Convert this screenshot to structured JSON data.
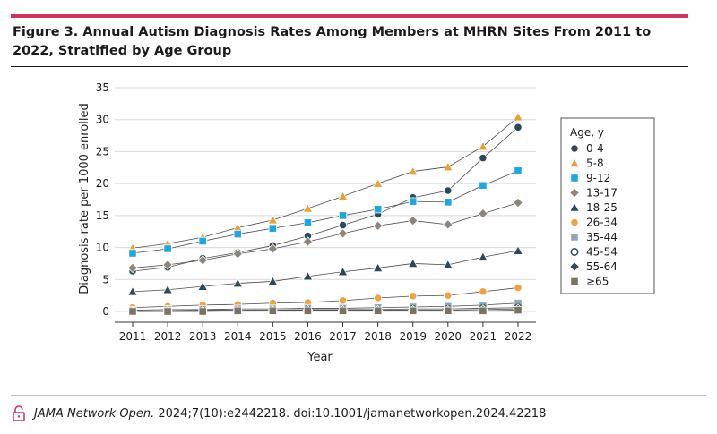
{
  "figure": {
    "title": "Figure 3. Annual Autism Diagnosis Rates Among Members at MHRN Sites From 2011 to 2022, Stratified by Age Group",
    "citation_journal": "JAMA Network Open.",
    "citation_rest": " 2024;7(10):e2442218. doi:10.1001/jamanetworkopen.2024.42218",
    "icon": "open-lock-icon"
  },
  "colors": {
    "accent_rule": "#c8365f",
    "navy": "#2f4858",
    "orange_tri": "#e8a13a",
    "blue": "#1ea7df",
    "taupe": "#8c8578",
    "orange_circle": "#efa347",
    "steel": "#8fa7b8",
    "brown": "#7b7266"
  },
  "chart_data": {
    "type": "line",
    "title": "",
    "xlabel": "Year",
    "ylabel": "Diagnosis rate per 1000 enrolled",
    "x": [
      "2011",
      "2012",
      "2013",
      "2014",
      "2015",
      "2016",
      "2017",
      "2018",
      "2019",
      "2020",
      "2021",
      "2022"
    ],
    "ylim": [
      0,
      35
    ],
    "yticks": [
      "0",
      "5",
      "10",
      "15",
      "20",
      "25",
      "30",
      "35"
    ],
    "grid": true,
    "legend_title": "Age, y",
    "legend_position": "right",
    "series": [
      {
        "name": "0-4",
        "marker": "circle",
        "color": "#2f4858",
        "values": [
          6.3,
          6.9,
          8.3,
          9.2,
          10.3,
          11.8,
          13.5,
          15.2,
          17.8,
          18.9,
          24.0,
          28.8
        ]
      },
      {
        "name": "5-8",
        "marker": "triangle",
        "color": "#e8a13a",
        "values": [
          9.9,
          10.6,
          11.6,
          13.1,
          14.3,
          16.1,
          18.0,
          20.0,
          21.9,
          22.6,
          25.8,
          30.4
        ]
      },
      {
        "name": "9-12",
        "marker": "square",
        "color": "#1ea7df",
        "values": [
          9.1,
          9.8,
          11.0,
          12.1,
          13.0,
          13.9,
          15.0,
          16.0,
          17.2,
          17.1,
          19.7,
          22.0
        ]
      },
      {
        "name": "13-17",
        "marker": "diamond",
        "color": "#8c8578",
        "values": [
          6.8,
          7.3,
          8.0,
          9.0,
          9.8,
          10.9,
          12.2,
          13.4,
          14.2,
          13.6,
          15.3,
          17.0
        ]
      },
      {
        "name": "18-25",
        "marker": "triangle",
        "color": "#2f4858",
        "values": [
          3.1,
          3.4,
          3.9,
          4.4,
          4.7,
          5.5,
          6.2,
          6.8,
          7.5,
          7.3,
          8.5,
          9.5
        ]
      },
      {
        "name": "26-34",
        "marker": "circle",
        "color": "#efa347",
        "values": [
          0.6,
          0.8,
          1.0,
          1.1,
          1.3,
          1.4,
          1.7,
          2.1,
          2.4,
          2.5,
          3.1,
          3.7
        ]
      },
      {
        "name": "35-44",
        "marker": "square",
        "color": "#8fa7b8",
        "values": [
          0.2,
          0.3,
          0.3,
          0.4,
          0.4,
          0.5,
          0.5,
          0.6,
          0.7,
          0.8,
          1.0,
          1.3
        ]
      },
      {
        "name": "45-54",
        "marker": "open-circle",
        "color": "#2f4858",
        "values": [
          0.1,
          0.1,
          0.2,
          0.2,
          0.2,
          0.3,
          0.3,
          0.3,
          0.4,
          0.4,
          0.5,
          0.6
        ]
      },
      {
        "name": "55-64",
        "marker": "diamond",
        "color": "#2f4858",
        "values": [
          0.0,
          0.1,
          0.1,
          0.1,
          0.1,
          0.2,
          0.2,
          0.2,
          0.2,
          0.2,
          0.3,
          0.4
        ]
      },
      {
        "name": "≥65",
        "marker": "square",
        "color": "#7b7266",
        "values": [
          0.0,
          0.0,
          0.0,
          0.1,
          0.1,
          0.1,
          0.1,
          0.1,
          0.1,
          0.1,
          0.1,
          0.2
        ]
      }
    ]
  }
}
